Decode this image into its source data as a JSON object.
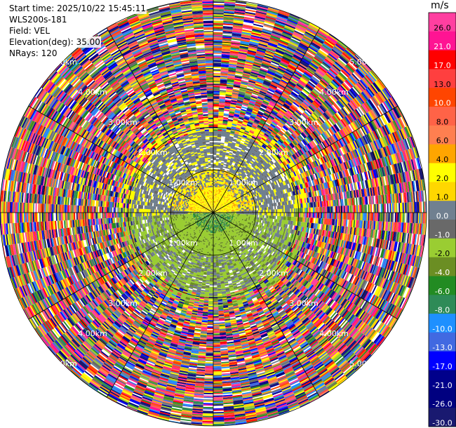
{
  "info": {
    "start_time": "Start time: 2025/10/22 15:45:11",
    "station": "WLS200s-181",
    "field": "Field: VEL",
    "elevation": "Elevation(deg): 35.00",
    "nrays": "NRays: 120"
  },
  "colorbar": {
    "unit": "m/s",
    "levels": [
      {
        "label": "26.0",
        "color": "#ff3fa0"
      },
      {
        "label": "21.0",
        "color": "#ff1493"
      },
      {
        "label": "17.0",
        "color": "#ff0000"
      },
      {
        "label": "13.0",
        "color": "#ff3f3f"
      },
      {
        "label": "10.0",
        "color": "#ff4500"
      },
      {
        "label": "8.0",
        "color": "#ff6347"
      },
      {
        "label": "6.0",
        "color": "#ff7f50"
      },
      {
        "label": "4.0",
        "color": "#ffa500"
      },
      {
        "label": "2.0",
        "color": "#ffff00"
      },
      {
        "label": "1.0",
        "color": "#ffd700"
      },
      {
        "label": "0.0",
        "color": "#708090"
      },
      {
        "label": "-1.0",
        "color": "#696969"
      },
      {
        "label": "-2.0",
        "color": "#9acd32"
      },
      {
        "label": "-4.0",
        "color": "#6b8e23"
      },
      {
        "label": "-6.0",
        "color": "#228b22"
      },
      {
        "label": "-8.0",
        "color": "#2e8b57"
      },
      {
        "label": "-10.0",
        "color": "#1e90ff"
      },
      {
        "label": "-13.0",
        "color": "#4169e1"
      },
      {
        "label": "-17.0",
        "color": "#0000ff"
      },
      {
        "label": "-21.0",
        "color": "#00008b"
      },
      {
        "label": "-26.0",
        "color": "#000080"
      },
      {
        "label": "-30.0",
        "color": "#191970"
      }
    ]
  },
  "chart_data": {
    "type": "heatmap",
    "projection": "PPI (polar)",
    "field": "VEL",
    "unit": "m/s",
    "elevation_deg": 35.0,
    "n_rays": 120,
    "max_range_km": 5.0,
    "range_rings_km": [
      1.0,
      2.0,
      3.0,
      4.0,
      5.0
    ],
    "ring_labels": [
      "1.00km",
      "2.00km",
      "3.00km",
      "4.00km",
      "5.00km"
    ],
    "zones": [
      {
        "range_km": [
          0.0,
          1.0
        ],
        "sector": "north",
        "dominant_values_ms": [
          1.0,
          2.0
        ],
        "note": "yellow/orange"
      },
      {
        "range_km": [
          0.0,
          1.0
        ],
        "sector": "south",
        "dominant_values_ms": [
          -2.0,
          -6.0
        ],
        "note": "green"
      },
      {
        "range_km": [
          1.0,
          2.0
        ],
        "sector": "north",
        "dominant_values_ms": [
          0.0,
          -1.0,
          1.0
        ],
        "note": "gray with yellow"
      },
      {
        "range_km": [
          1.0,
          2.0
        ],
        "sector": "south",
        "dominant_values_ms": [
          -2.0,
          -4.0,
          0.0
        ],
        "note": "green and gray"
      },
      {
        "range_km": [
          2.0,
          5.0
        ],
        "sector": "all",
        "dominant_values_ms": "noise (all bins)",
        "note": "random colors"
      }
    ]
  }
}
